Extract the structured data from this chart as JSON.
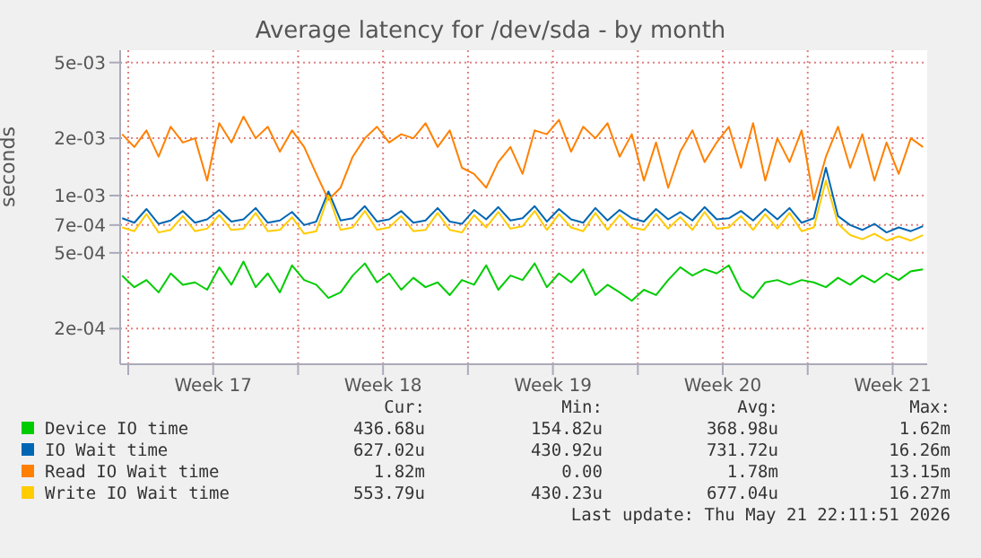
{
  "chart_data": {
    "type": "line",
    "title": "Average latency for /dev/sda - by month",
    "ylabel": "seconds",
    "log": "y",
    "grid": true,
    "legend": "bottom",
    "xlim": [
      "2026-04-18T16:00",
      "2026-05-21T22:11"
    ],
    "xticks": [
      {
        "value": "2026-04-19T00:00",
        "label": null
      },
      {
        "value": "2026-04-22T12:00",
        "label": "Week 17"
      },
      {
        "value": "2026-04-26T00:00",
        "label": null
      },
      {
        "value": "2026-04-29T12:00",
        "label": "Week 18"
      },
      {
        "value": "2026-05-03T00:00",
        "label": null
      },
      {
        "value": "2026-05-06T12:00",
        "label": "Week 19"
      },
      {
        "value": "2026-05-10T00:00",
        "label": null
      },
      {
        "value": "2026-05-13T12:00",
        "label": "Week 20"
      },
      {
        "value": "2026-05-17T00:00",
        "label": null
      },
      {
        "value": "2026-05-20T12:00",
        "label": "Week 21"
      }
    ],
    "ylim": [
      0.00013,
      0.0058
    ],
    "yticks": [
      {
        "value": 0.005,
        "label": "5e-03"
      },
      {
        "value": 0.002,
        "label": "2e-03"
      },
      {
        "value": 0.001,
        "label": "1e-03"
      },
      {
        "value": 0.0007,
        "label": "7e-04"
      },
      {
        "value": 0.0005,
        "label": "5e-04"
      },
      {
        "value": 0.0002,
        "label": "2e-04"
      }
    ],
    "x": [
      "2026-04-18T18:00",
      "2026-04-19T06:00",
      "2026-04-19T18:00",
      "2026-04-20T06:00",
      "2026-04-20T18:00",
      "2026-04-21T06:00",
      "2026-04-21T18:00",
      "2026-04-22T06:00",
      "2026-04-22T18:00",
      "2026-04-23T06:00",
      "2026-04-23T18:00",
      "2026-04-24T06:00",
      "2026-04-24T18:00",
      "2026-04-25T06:00",
      "2026-04-25T18:00",
      "2026-04-26T06:00",
      "2026-04-26T18:00",
      "2026-04-27T06:00",
      "2026-04-27T18:00",
      "2026-04-28T06:00",
      "2026-04-28T18:00",
      "2026-04-29T06:00",
      "2026-04-29T18:00",
      "2026-04-30T06:00",
      "2026-04-30T18:00",
      "2026-05-01T06:00",
      "2026-05-01T18:00",
      "2026-05-02T06:00",
      "2026-05-02T18:00",
      "2026-05-03T06:00",
      "2026-05-03T18:00",
      "2026-05-04T06:00",
      "2026-05-04T18:00",
      "2026-05-05T06:00",
      "2026-05-05T18:00",
      "2026-05-06T06:00",
      "2026-05-06T18:00",
      "2026-05-07T06:00",
      "2026-05-07T18:00",
      "2026-05-08T06:00",
      "2026-05-08T18:00",
      "2026-05-09T06:00",
      "2026-05-09T18:00",
      "2026-05-10T06:00",
      "2026-05-10T18:00",
      "2026-05-11T06:00",
      "2026-05-11T18:00",
      "2026-05-12T06:00",
      "2026-05-12T18:00",
      "2026-05-13T06:00",
      "2026-05-13T18:00",
      "2026-05-14T06:00",
      "2026-05-14T18:00",
      "2026-05-15T06:00",
      "2026-05-15T18:00",
      "2026-05-16T06:00",
      "2026-05-16T18:00",
      "2026-05-17T06:00",
      "2026-05-17T18:00",
      "2026-05-18T06:00",
      "2026-05-18T18:00",
      "2026-05-19T06:00",
      "2026-05-19T18:00",
      "2026-05-20T06:00",
      "2026-05-20T18:00",
      "2026-05-21T06:00",
      "2026-05-21T18:00"
    ],
    "series": [
      {
        "name": "Device IO time",
        "color": "#00cc00",
        "values": [
          0.00038,
          0.00033,
          0.00036,
          0.00031,
          0.00039,
          0.00034,
          0.00035,
          0.00032,
          0.00042,
          0.00034,
          0.00045,
          0.00033,
          0.00039,
          0.00031,
          0.00043,
          0.00036,
          0.00034,
          0.00029,
          0.00031,
          0.00038,
          0.00044,
          0.00035,
          0.00039,
          0.00032,
          0.00037,
          0.00033,
          0.00035,
          0.0003,
          0.00036,
          0.00034,
          0.00043,
          0.00032,
          0.00038,
          0.00036,
          0.00044,
          0.00033,
          0.00039,
          0.00035,
          0.00041,
          0.0003,
          0.00034,
          0.00031,
          0.00028,
          0.00032,
          0.0003,
          0.00036,
          0.00042,
          0.00038,
          0.00041,
          0.00039,
          0.00043,
          0.00032,
          0.00029,
          0.00035,
          0.00036,
          0.00034,
          0.00036,
          0.00035,
          0.00033,
          0.00037,
          0.00034,
          0.00038,
          0.00035,
          0.00039,
          0.00036,
          0.0004,
          0.00041
        ]
      },
      {
        "name": "IO Wait time",
        "color": "#0066b3",
        "values": [
          0.00076,
          0.00072,
          0.00085,
          0.00071,
          0.00074,
          0.00083,
          0.00072,
          0.00075,
          0.00084,
          0.00073,
          0.00075,
          0.00086,
          0.00072,
          0.00074,
          0.00082,
          0.0007,
          0.00073,
          0.00105,
          0.00074,
          0.00076,
          0.00088,
          0.00073,
          0.00075,
          0.00083,
          0.00072,
          0.00074,
          0.00086,
          0.00073,
          0.00071,
          0.00084,
          0.00075,
          0.00087,
          0.00074,
          0.00076,
          0.00088,
          0.00073,
          0.00085,
          0.00075,
          0.00072,
          0.00086,
          0.00074,
          0.00084,
          0.00076,
          0.00073,
          0.00085,
          0.00075,
          0.00082,
          0.00074,
          0.00087,
          0.00075,
          0.00076,
          0.00083,
          0.00074,
          0.00085,
          0.00075,
          0.00086,
          0.00072,
          0.00076,
          0.0014,
          0.00078,
          0.0007,
          0.00066,
          0.00071,
          0.00064,
          0.00068,
          0.00065,
          0.00069
        ]
      },
      {
        "name": "Read IO Wait time",
        "color": "#ff8000",
        "values": [
          0.0021,
          0.0018,
          0.0022,
          0.0016,
          0.0023,
          0.0019,
          0.002,
          0.0012,
          0.0024,
          0.0019,
          0.0026,
          0.002,
          0.0023,
          0.0017,
          0.0022,
          0.0018,
          0.0013,
          0.00095,
          0.0011,
          0.0016,
          0.002,
          0.0023,
          0.0019,
          0.0021,
          0.002,
          0.0024,
          0.0018,
          0.0022,
          0.0014,
          0.0013,
          0.0011,
          0.0015,
          0.0018,
          0.0013,
          0.0022,
          0.0021,
          0.0025,
          0.0017,
          0.0023,
          0.002,
          0.0024,
          0.0016,
          0.0021,
          0.0012,
          0.0019,
          0.0011,
          0.0017,
          0.0022,
          0.0015,
          0.0019,
          0.0023,
          0.0014,
          0.0024,
          0.0012,
          0.002,
          0.0015,
          0.0022,
          0.00095,
          0.0016,
          0.0023,
          0.0014,
          0.0021,
          0.0012,
          0.0019,
          0.0013,
          0.002,
          0.0018
        ]
      },
      {
        "name": "Write IO Wait time",
        "color": "#ffcc00",
        "values": [
          0.00068,
          0.00065,
          0.0008,
          0.00064,
          0.00066,
          0.00078,
          0.00065,
          0.00067,
          0.00079,
          0.00066,
          0.00067,
          0.00081,
          0.00065,
          0.00066,
          0.00077,
          0.00063,
          0.00065,
          0.001,
          0.00066,
          0.00068,
          0.00083,
          0.00066,
          0.00068,
          0.00078,
          0.00065,
          0.00066,
          0.00081,
          0.00066,
          0.00064,
          0.00079,
          0.00068,
          0.00082,
          0.00067,
          0.00069,
          0.00083,
          0.00066,
          0.0008,
          0.00068,
          0.00065,
          0.00081,
          0.00066,
          0.00079,
          0.00068,
          0.00066,
          0.0008,
          0.00067,
          0.00077,
          0.00066,
          0.00082,
          0.00067,
          0.00068,
          0.00078,
          0.00066,
          0.0008,
          0.00067,
          0.00081,
          0.00065,
          0.00068,
          0.0012,
          0.00071,
          0.00062,
          0.00059,
          0.00063,
          0.00058,
          0.00061,
          0.00058,
          0.00062
        ]
      }
    ],
    "annotations": [
      "Cur:",
      "Min:",
      "Avg:",
      "Max:",
      "436.68u",
      "154.82u",
      "368.98u",
      "1.62m",
      "627.02u",
      "430.92u",
      "731.72u",
      "16.26m",
      "1.82m",
      "0.00",
      "1.78m",
      "13.15m",
      "553.79u",
      "430.23u",
      "677.04u",
      "16.27m",
      "Last update: Thu May 21 22:11:51 2026"
    ]
  }
}
